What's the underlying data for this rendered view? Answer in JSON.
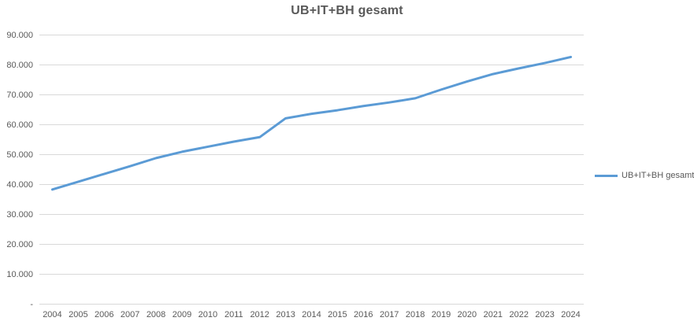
{
  "chart": {
    "title": "UB+IT+BH gesamt",
    "legend": {
      "label": "UB+IT+BH gesamt",
      "position": "right"
    },
    "colors": {
      "line": "#5B9BD5",
      "grid": "#D9D9D9",
      "axis_line": "#D9D9D9",
      "text": "#595959",
      "background": "#FFFFFF"
    }
  },
  "chart_data": {
    "type": "line",
    "title": "UB+IT+BH gesamt",
    "categories": [
      "2004",
      "2005",
      "2006",
      "2007",
      "2008",
      "2009",
      "2010",
      "2011",
      "2012",
      "2013",
      "2014",
      "2015",
      "2016",
      "2017",
      "2018",
      "2019",
      "2020",
      "2021",
      "2022",
      "2023",
      "2024"
    ],
    "series": [
      {
        "name": "UB+IT+BH gesamt",
        "color": "#5B9BD5",
        "values": [
          38400,
          41000,
          43600,
          46200,
          48900,
          51000,
          52700,
          54400,
          55900,
          62200,
          63700,
          64900,
          66300,
          67500,
          68900,
          71800,
          74500,
          77000,
          78900,
          80700,
          82700
        ]
      }
    ],
    "xlabel": "",
    "ylabel": "",
    "ylim": [
      0,
      90000
    ],
    "y_tick_step": 10000,
    "y_tick_labels": [
      "-",
      "10.000",
      "20.000",
      "30.000",
      "40.000",
      "50.000",
      "60.000",
      "70.000",
      "80.000",
      "90.000"
    ],
    "grid": true,
    "legend_position": "right"
  }
}
